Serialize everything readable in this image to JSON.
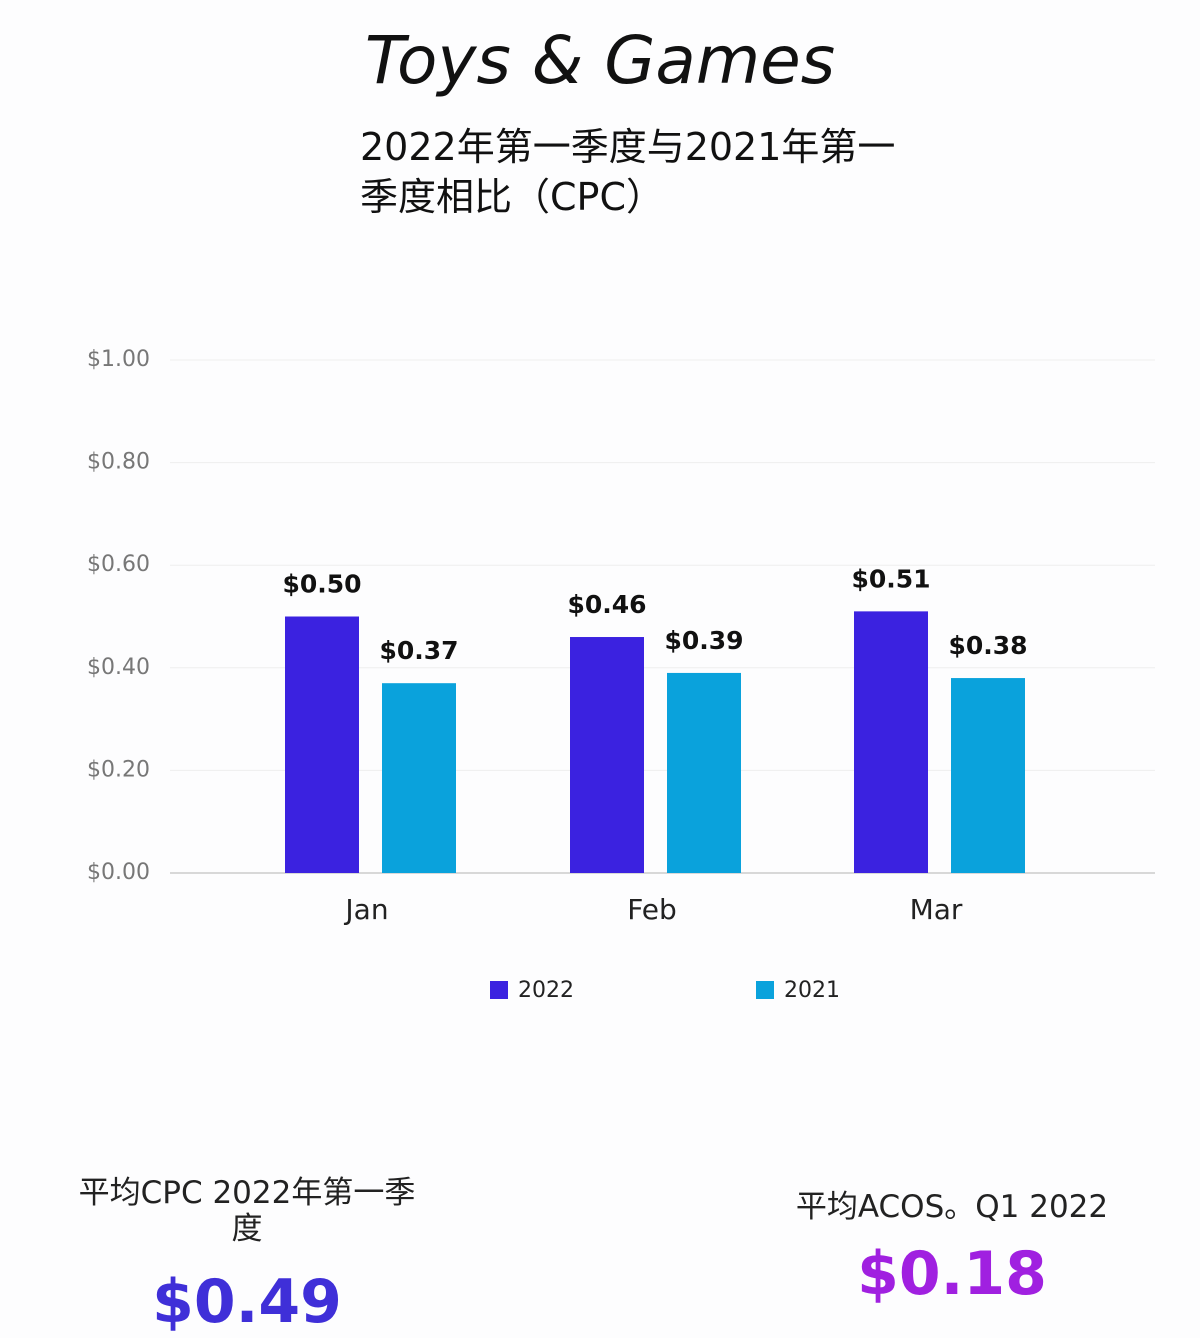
{
  "chart_data": {
    "type": "bar",
    "title": "Toys & Games",
    "subtitle": "2022年第一季度与2021年第一季度相比（CPC）",
    "categories": [
      "Jan",
      "Feb",
      "Mar"
    ],
    "series": [
      {
        "name": "2022",
        "color": "#3b22e0",
        "values": [
          0.5,
          0.46,
          0.51
        ],
        "value_labels": [
          "$0.50",
          "$0.46",
          "$0.51"
        ]
      },
      {
        "name": "2021",
        "color": "#0aa2dc",
        "values": [
          0.37,
          0.39,
          0.38
        ],
        "value_labels": [
          "$0.37",
          "$0.39",
          "$0.38"
        ]
      }
    ],
    "ylim": [
      0,
      1
    ],
    "yticks": [
      {
        "value": 0,
        "label": "$0.00"
      },
      {
        "value": 0.2,
        "label": "$0.20"
      },
      {
        "value": 0.4,
        "label": "$0.40"
      },
      {
        "value": 0.6,
        "label": "$0.60"
      },
      {
        "value": 0.8,
        "label": "$0.80"
      },
      {
        "value": 1,
        "label": "$1.00"
      }
    ],
    "grid": true,
    "legend": "bottom"
  },
  "stats": [
    {
      "label": "平均CPC 2022年第一季度",
      "value": "$0.49",
      "color": "#3f2fd8"
    },
    {
      "label": "平均ACOS。Q1 2022",
      "value": "$0.18",
      "color": "#a020e0"
    }
  ]
}
